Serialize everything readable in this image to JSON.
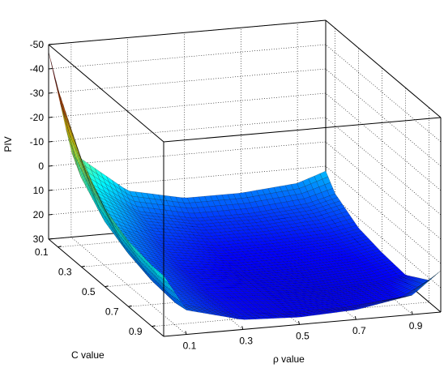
{
  "chart_data": {
    "type": "surface",
    "zlabel": "PIV",
    "xlabel": "C value",
    "ylabel": "ρ value",
    "z_axis_direction": "reversed",
    "c_ticks": [
      "0.1",
      "0.3",
      "0.5",
      "0.7",
      "0.9"
    ],
    "rho_ticks": [
      "0.1",
      "0.3",
      "0.5",
      "0.7",
      "0.9"
    ],
    "z_ticks": [
      "-50",
      "-40",
      "-30",
      "-20",
      "-10",
      "0",
      "10",
      "20",
      "30"
    ],
    "c_range": [
      0.02,
      1.0
    ],
    "rho_range": [
      0.02,
      1.0
    ],
    "z_range": [
      30,
      -50
    ],
    "grid": true,
    "colormap": "jet",
    "surface_samples": {
      "c": [
        0.02,
        0.1,
        0.3,
        0.5,
        0.7,
        0.9,
        1.0
      ],
      "rho": [
        0.02,
        0.1,
        0.3,
        0.5,
        0.7,
        0.9,
        1.0
      ],
      "piv": [
        [
          -47,
          -5,
          13,
          18,
          18,
          16,
          12
        ],
        [
          -35,
          2,
          18,
          23,
          23,
          21,
          18
        ],
        [
          -14,
          12,
          23,
          27,
          27,
          26,
          24
        ],
        [
          -2,
          17,
          26,
          29,
          29,
          28,
          26
        ],
        [
          3,
          20,
          27,
          29,
          30,
          29,
          27
        ],
        [
          5,
          21,
          27,
          29,
          29,
          27,
          21
        ],
        [
          5,
          20,
          26,
          27,
          26,
          22,
          13
        ]
      ]
    }
  }
}
